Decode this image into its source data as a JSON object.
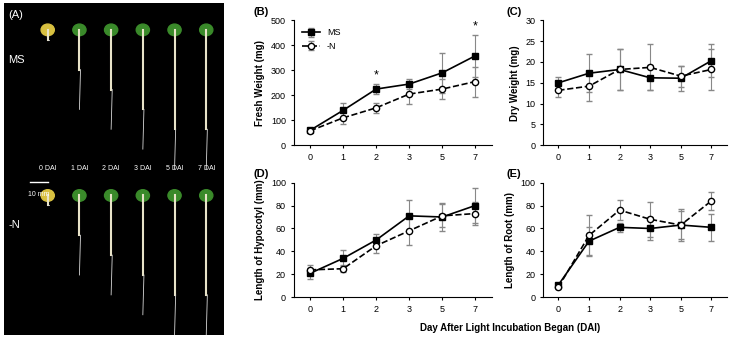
{
  "image_panel": {
    "label": "(A)",
    "rows": [
      "MS",
      "-N"
    ],
    "columns": [
      "0 DAI",
      "1 DAI",
      "2 DAI",
      "3 DAI",
      "5 DAI",
      "7 DAI"
    ],
    "scale_bar": "10 mm"
  },
  "shared_xlabel": "Day After Light Incubation Began (DAI)",
  "chart_data": [
    {
      "type": "line",
      "title": "(B)",
      "y_label": "Fresh Weight (mg)",
      "categories": [
        "0",
        "1",
        "2",
        "3",
        "5",
        "7"
      ],
      "ylim": [
        0,
        500
      ],
      "yticks": [
        0,
        100,
        200,
        300,
        400,
        500
      ],
      "legend": "upper left",
      "series": [
        {
          "name": "MS",
          "color": "#000000",
          "marker": "square",
          "line_style": "solid",
          "values": [
            60,
            140,
            225,
            245,
            290,
            358
          ],
          "errors": [
            5,
            30,
            20,
            20,
            80,
            85
          ]
        },
        {
          "name": "-N",
          "color": "#000000",
          "marker": "open circle",
          "line_style": "dashed",
          "values": [
            58,
            110,
            150,
            205,
            225,
            255
          ],
          "errors": [
            5,
            25,
            20,
            40,
            40,
            60
          ]
        }
      ],
      "annotations": [
        {
          "x": "2",
          "y": 255,
          "text": "*"
        },
        {
          "x": "7",
          "y": 450,
          "text": "*"
        }
      ]
    },
    {
      "type": "line",
      "title": "(C)",
      "y_label": "Dry Weight (mg)",
      "categories": [
        "0",
        "1",
        "2",
        "3",
        "5",
        "7"
      ],
      "ylim": [
        0,
        30
      ],
      "yticks": [
        0,
        5,
        10,
        15,
        20,
        25,
        30
      ],
      "series": [
        {
          "name": "MS",
          "color": "#000000",
          "marker": "square",
          "line_style": "solid",
          "values": [
            15,
            17.3,
            18.2,
            16.2,
            16.1,
            20.3
          ],
          "errors": [
            1.5,
            4.5,
            5,
            3,
            3,
            4
          ]
        },
        {
          "name": "-N",
          "color": "#000000",
          "marker": "open circle",
          "line_style": "dashed",
          "values": [
            13.2,
            14.2,
            18.2,
            18.7,
            16.6,
            18.2
          ],
          "errors": [
            1.5,
            3.5,
            5,
            5.5,
            2.5,
            5
          ]
        }
      ]
    },
    {
      "type": "line",
      "title": "(D)",
      "y_label": "Length of Hypocotyl (mm)",
      "categories": [
        "0",
        "1",
        "2",
        "3",
        "5",
        "7"
      ],
      "ylim": [
        0,
        100
      ],
      "yticks": [
        0,
        20,
        40,
        60,
        80,
        100
      ],
      "series": [
        {
          "name": "MS",
          "color": "#000000",
          "marker": "square",
          "line_style": "solid",
          "values": [
            21,
            34,
            50,
            71,
            70,
            80
          ],
          "errors": [
            5,
            7,
            5,
            14,
            12,
            15
          ]
        },
        {
          "name": "-N",
          "color": "#000000",
          "marker": "open circle",
          "line_style": "dashed",
          "values": [
            24,
            25,
            45,
            58,
            71,
            73
          ],
          "errors": [
            4,
            3,
            6,
            12,
            10,
            10
          ]
        }
      ]
    },
    {
      "type": "line",
      "title": "(E)",
      "y_label": "Length of Root (mm)",
      "categories": [
        "0",
        "1",
        "2",
        "3",
        "5",
        "7"
      ],
      "ylim": [
        0,
        100
      ],
      "yticks": [
        0,
        20,
        40,
        60,
        80,
        100
      ],
      "series": [
        {
          "name": "MS",
          "color": "#000000",
          "marker": "square",
          "line_style": "solid",
          "values": [
            11,
            49,
            61,
            60,
            63,
            61
          ],
          "errors": [
            2,
            12,
            4,
            10,
            12,
            12
          ]
        },
        {
          "name": "-N",
          "color": "#000000",
          "marker": "open circle",
          "line_style": "dashed",
          "values": [
            9,
            54,
            76,
            68,
            63,
            84
          ],
          "errors": [
            2,
            18,
            9,
            15,
            14,
            8
          ]
        }
      ]
    }
  ]
}
